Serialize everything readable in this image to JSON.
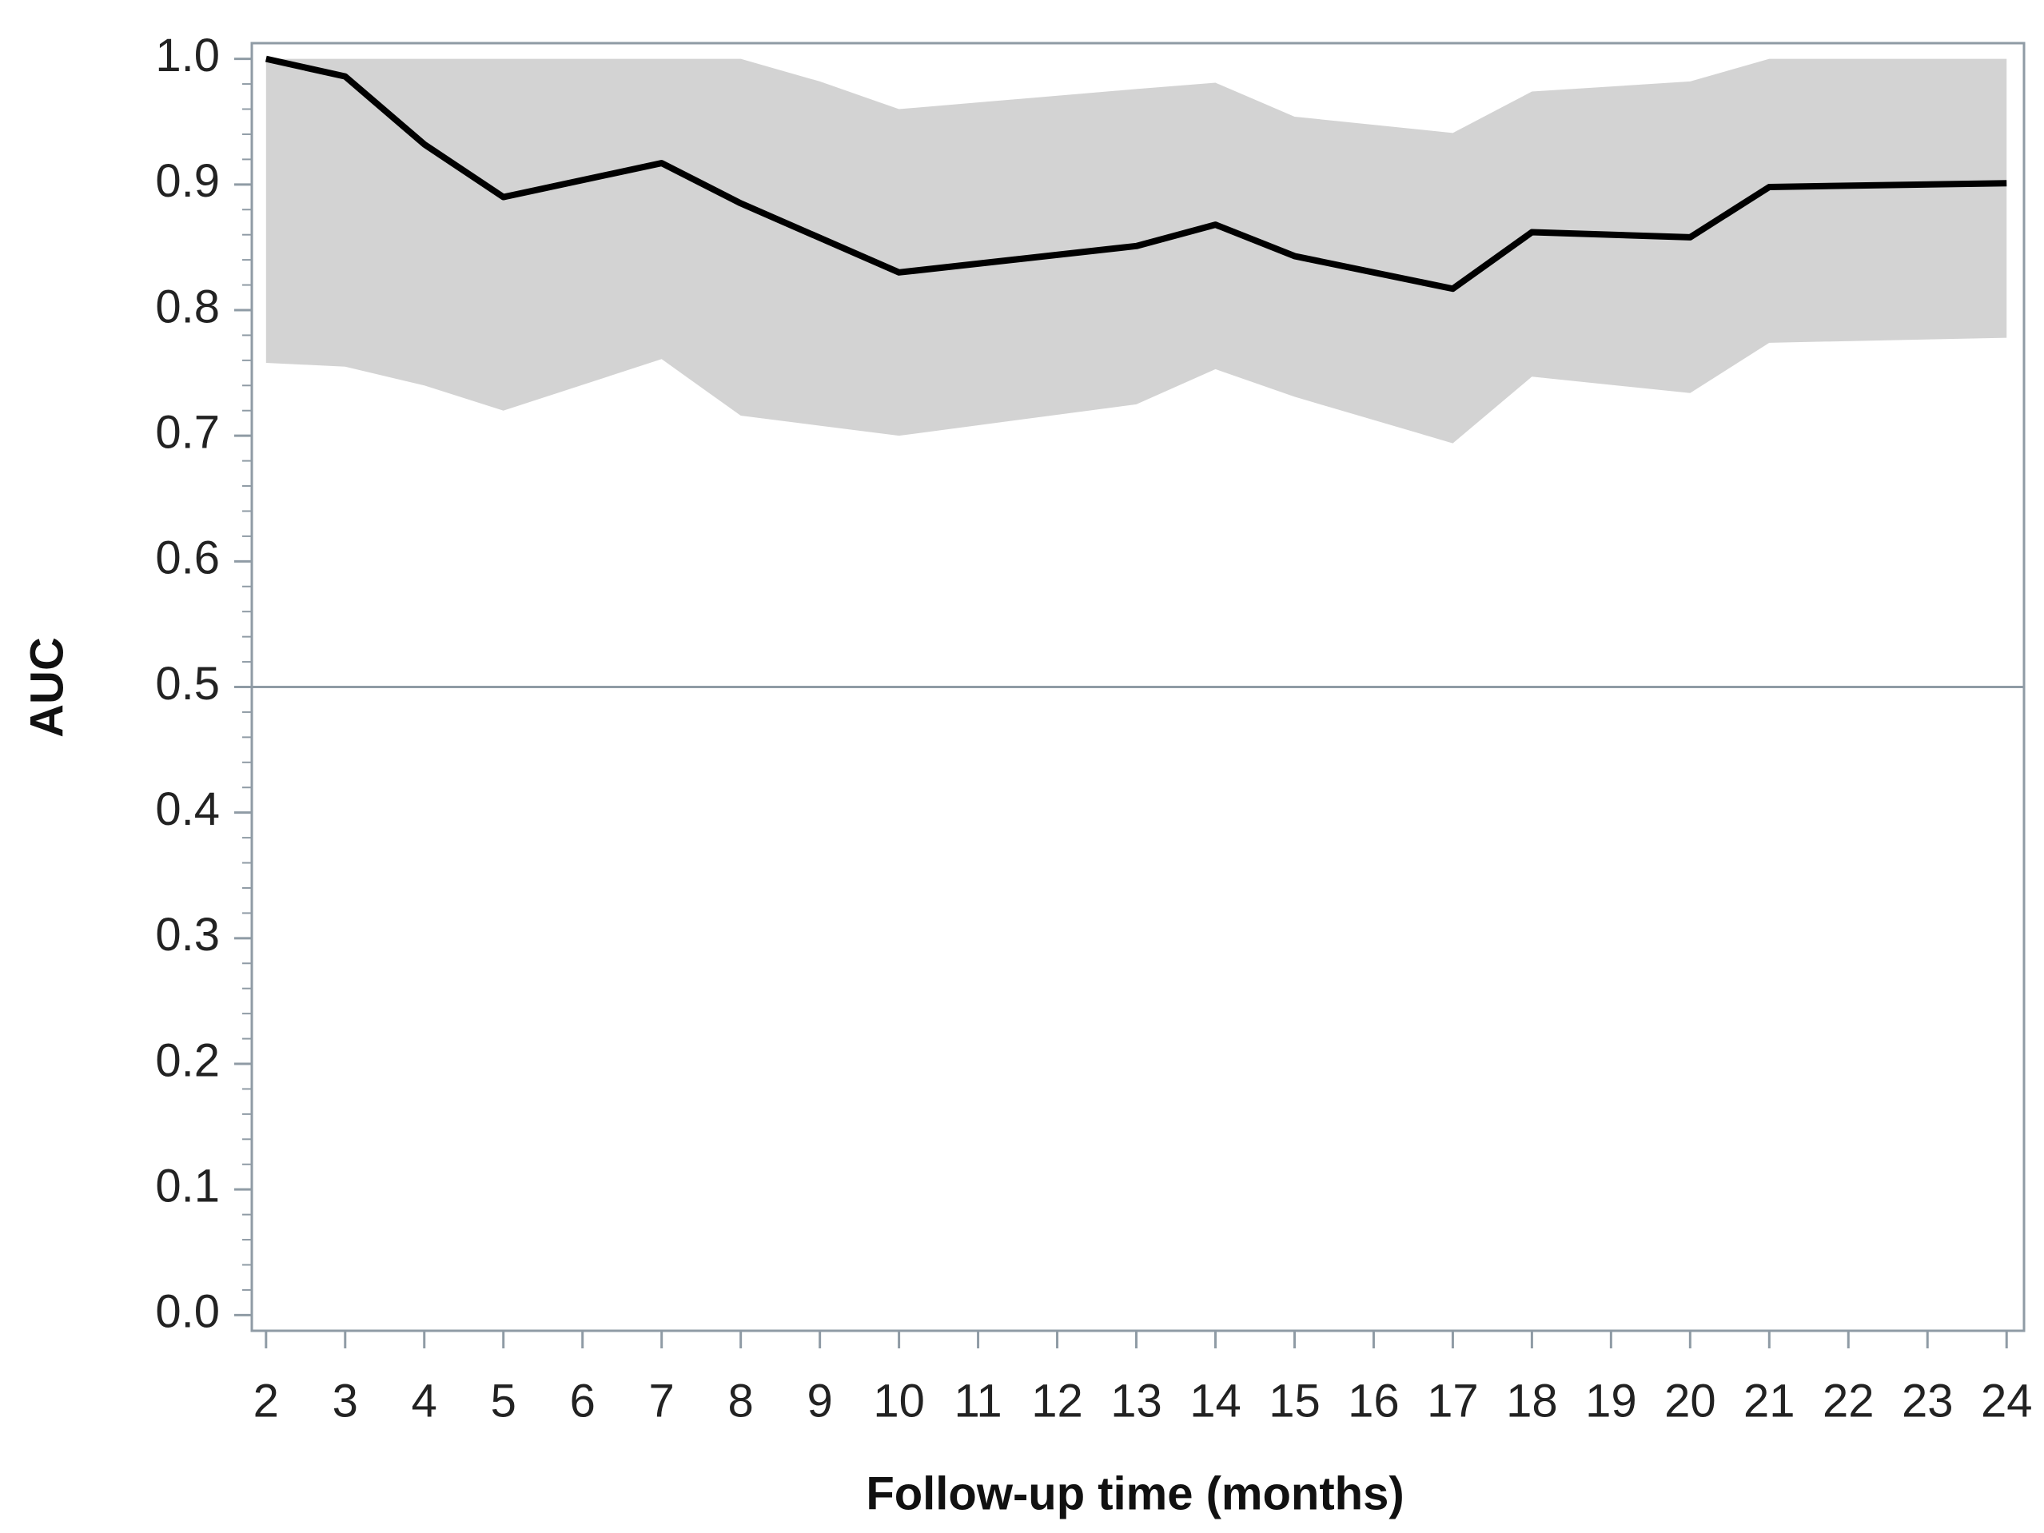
{
  "chart_data": {
    "type": "line",
    "xlabel": "Follow-up time (months)",
    "ylabel": "AUC",
    "xlim": [
      1.82,
      24.22
    ],
    "ylim": [
      -0.0125,
      1.0125
    ],
    "xticks": [
      2,
      3,
      4,
      5,
      6,
      7,
      8,
      9,
      10,
      11,
      12,
      13,
      14,
      15,
      16,
      17,
      18,
      19,
      20,
      21,
      22,
      23,
      24
    ],
    "yticks": [
      {
        "value": 0,
        "label": "0.0"
      },
      0.1,
      0.2,
      0.3,
      0.4,
      0.5,
      0.6,
      0.7,
      0.8,
      0.9,
      {
        "value": 1,
        "label": "1.0"
      }
    ],
    "y_minor_divisions": 5,
    "reference_line": 0.5,
    "band": {
      "color": "#d3d3d3",
      "x": [
        2,
        3,
        4,
        5,
        7,
        8,
        9,
        10,
        13,
        14,
        15,
        17,
        18,
        20,
        21,
        24
      ],
      "lower": [
        0.758,
        0.755,
        0.74,
        0.72,
        0.761,
        0.716,
        0.708,
        0.7,
        0.725,
        0.753,
        0.731,
        0.694,
        0.747,
        0.734,
        0.774,
        0.778
      ],
      "upper": [
        1.0,
        1.0,
        1.0,
        1.0,
        1.0,
        1.0,
        0.982,
        0.96,
        0.976,
        0.981,
        0.954,
        0.941,
        0.974,
        0.982,
        1.0,
        1.0
      ]
    },
    "line": {
      "color": "#000000",
      "x": [
        2,
        3,
        4,
        5,
        7,
        8,
        10,
        13,
        14,
        15,
        17,
        18,
        20,
        21,
        24
      ],
      "values": [
        1.0,
        0.986,
        0.932,
        0.89,
        0.917,
        0.885,
        0.83,
        0.851,
        0.868,
        0.843,
        0.817,
        0.862,
        0.858,
        0.898,
        0.901
      ]
    }
  }
}
